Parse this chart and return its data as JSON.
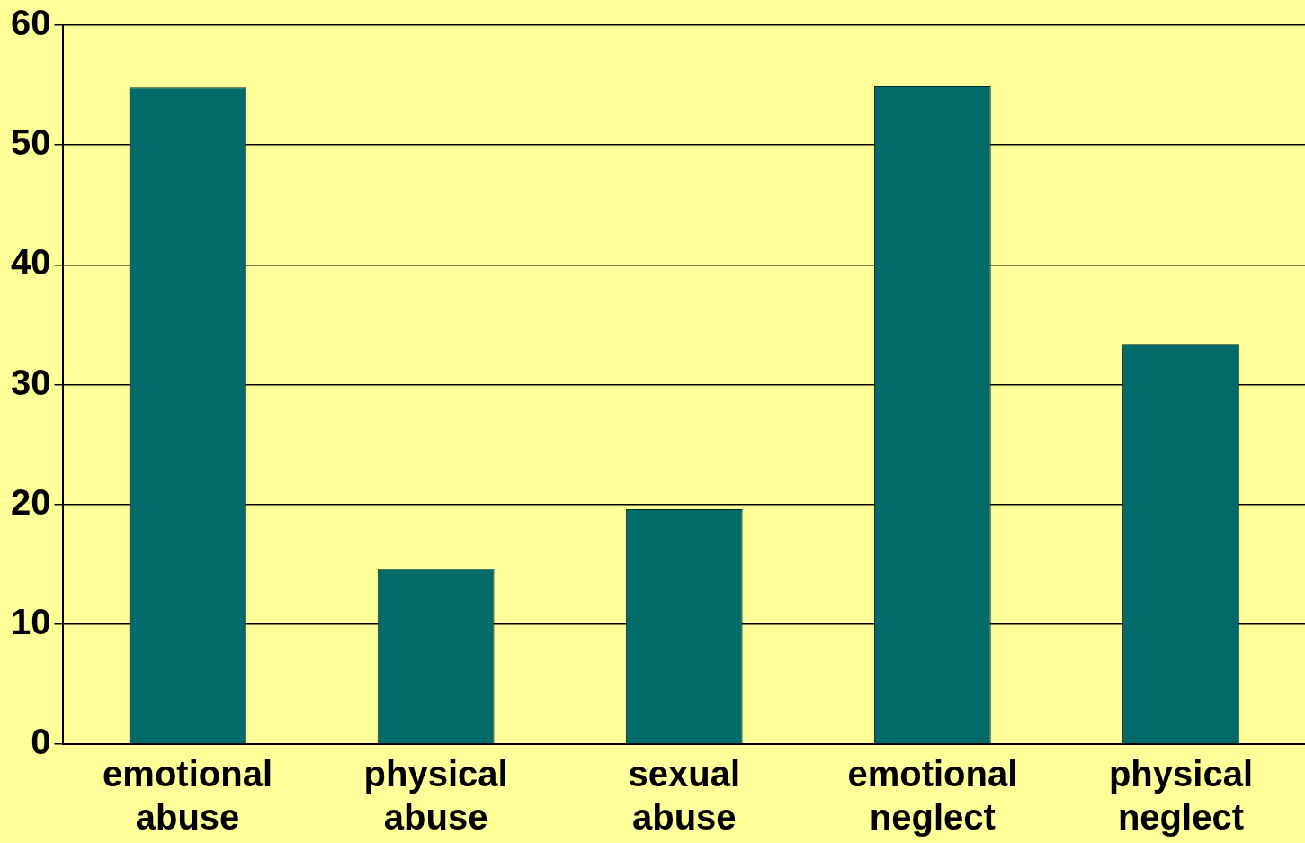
{
  "chart_data": {
    "type": "bar",
    "categories": [
      "emotional abuse",
      "physical abuse",
      "sexual abuse",
      "emotional neglect",
      "physical neglect"
    ],
    "values": [
      54.8,
      14.6,
      19.6,
      54.9,
      33.4
    ],
    "color": "#006b68",
    "ylim": [
      0,
      60
    ],
    "yticks": [
      0,
      10,
      20,
      30,
      40,
      50,
      60
    ],
    "grid": "y",
    "legend": false
  }
}
